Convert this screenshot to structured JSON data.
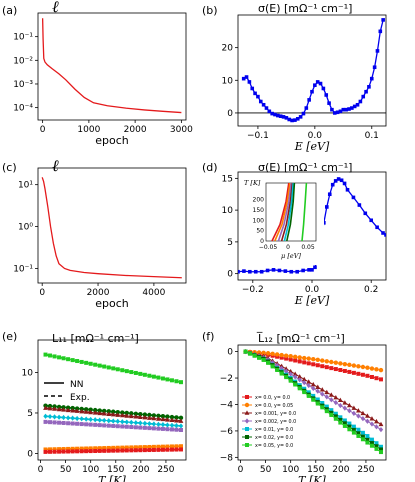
{
  "chart_data": [
    {
      "panel": "(a)",
      "type": "line",
      "title": "ℓ",
      "xlabel": "epoch",
      "ylabel": "",
      "yscale": "log",
      "xlim": [
        -100,
        3100
      ],
      "ylim": [
        3e-05,
        1.0
      ],
      "xticks": [
        0,
        1000,
        2000,
        3000
      ],
      "xtick_labels": [
        "0",
        "1000",
        "2000",
        "3000"
      ],
      "yticks": [
        0.1,
        0.01,
        0.001,
        0.0001
      ],
      "ytick_labels": [
        "10⁻¹",
        "10⁻²",
        "10⁻³",
        "10⁻⁴"
      ],
      "grid": false,
      "series": [
        {
          "color": "#e41a1c",
          "marker": "none",
          "x": [
            0,
            10,
            25,
            50,
            100,
            200,
            350,
            500,
            700,
            900,
            1100,
            1400,
            1800,
            2200,
            2600,
            3000
          ],
          "y": [
            0.6,
            0.08,
            0.012,
            0.0085,
            0.0065,
            0.0045,
            0.0027,
            0.0015,
            0.0006,
            0.00027,
            0.00016,
            0.00012,
            9.5e-05,
            8e-05,
            7e-05,
            6.2e-05
          ]
        }
      ]
    },
    {
      "panel": "(b)",
      "type": "line",
      "title": "σ(E) [mΩ⁻¹ cm⁻¹]",
      "xlabel": "E [eV]",
      "ylabel": "",
      "xlim": [
        -0.135,
        0.125
      ],
      "ylim": [
        -4,
        30
      ],
      "xticks": [
        -0.1,
        0.0,
        0.1
      ],
      "xtick_labels": [
        "−0.1",
        "0.0",
        "0.1"
      ],
      "yticks": [
        0,
        10,
        20
      ],
      "ytick_labels": [
        "0",
        "10",
        "20"
      ],
      "hline": 0,
      "grid": false,
      "series": [
        {
          "color": "#0000ee",
          "marker": "square",
          "x": [
            -0.125,
            -0.12,
            -0.115,
            -0.11,
            -0.105,
            -0.1,
            -0.095,
            -0.09,
            -0.085,
            -0.08,
            -0.075,
            -0.07,
            -0.065,
            -0.06,
            -0.055,
            -0.05,
            -0.045,
            -0.04,
            -0.035,
            -0.03,
            -0.025,
            -0.02,
            -0.015,
            -0.01,
            -0.005,
            0.0,
            0.005,
            0.01,
            0.015,
            0.02,
            0.025,
            0.03,
            0.035,
            0.04,
            0.045,
            0.05,
            0.055,
            0.06,
            0.065,
            0.07,
            0.075,
            0.08,
            0.085,
            0.09,
            0.095,
            0.1,
            0.105,
            0.11,
            0.115,
            0.12
          ],
          "y": [
            10.5,
            11.0,
            9.5,
            7.5,
            6.0,
            5.0,
            3.5,
            2.5,
            1.5,
            0.5,
            -0.2,
            -0.5,
            -0.8,
            -1.0,
            -1.2,
            -1.5,
            -2.0,
            -2.3,
            -2.2,
            -1.8,
            -1.2,
            -0.2,
            1.5,
            4.0,
            6.5,
            8.5,
            9.5,
            9.0,
            7.5,
            5.5,
            3.0,
            1.0,
            0.0,
            0.2,
            0.5,
            1.0,
            1.0,
            1.2,
            1.5,
            2.0,
            2.5,
            3.5,
            5.0,
            6.5,
            8.0,
            10.5,
            14.0,
            19.0,
            25.0,
            28.5
          ]
        }
      ]
    },
    {
      "panel": "(c)",
      "type": "line",
      "title": "ℓ",
      "xlabel": "epoch",
      "ylabel": "",
      "yscale": "log",
      "xlim": [
        -150,
        5150
      ],
      "ylim": [
        0.045,
        25
      ],
      "xticks": [
        0,
        2000,
        4000
      ],
      "xtick_labels": [
        "0",
        "2000",
        "4000"
      ],
      "yticks": [
        10,
        1,
        0.1
      ],
      "ytick_labels": [
        "10¹",
        "10⁰",
        "10⁻¹"
      ],
      "grid": false,
      "series": [
        {
          "color": "#e41a1c",
          "marker": "none",
          "x": [
            0,
            50,
            100,
            200,
            300,
            400,
            500,
            600,
            800,
            1000,
            1500,
            2000,
            3000,
            4000,
            5000
          ],
          "y": [
            15,
            12,
            8,
            3,
            1.0,
            0.4,
            0.2,
            0.13,
            0.1,
            0.09,
            0.08,
            0.075,
            0.068,
            0.064,
            0.06
          ]
        }
      ]
    },
    {
      "panel": "(d)",
      "type": "line",
      "title": "σ(E) [mΩ⁻¹ cm⁻¹]",
      "xlabel": "E [eV]",
      "ylabel": "",
      "xlim": [
        -0.25,
        0.25
      ],
      "ylim": [
        -1,
        16
      ],
      "xticks": [
        -0.2,
        0.0,
        0.2
      ],
      "xtick_labels": [
        "−0.2",
        "0.0",
        "0.2"
      ],
      "yticks": [
        0,
        5,
        10,
        15
      ],
      "ytick_labels": [
        "0",
        "5",
        "10",
        "15"
      ],
      "grid": false,
      "series": [
        {
          "color": "#0000ee",
          "marker": "square",
          "x": [
            -0.25,
            -0.23,
            -0.21,
            -0.19,
            -0.17,
            -0.15,
            -0.13,
            -0.11,
            -0.09,
            -0.07,
            -0.05,
            -0.03,
            -0.01,
            0.0,
            0.01,
            0.02,
            0.03,
            0.04,
            0.05,
            0.06,
            0.07,
            0.08,
            0.09,
            0.1,
            0.11,
            0.12,
            0.14,
            0.16,
            0.18,
            0.2,
            0.22,
            0.24,
            0.25
          ],
          "y": [
            0.3,
            0.4,
            0.3,
            0.3,
            0.3,
            0.5,
            0.6,
            0.5,
            0.4,
            0.3,
            0.3,
            0.5,
            0.6,
            0.6,
            1.0,
            2.5,
            5.0,
            8.0,
            10.5,
            12.5,
            14.0,
            14.6,
            14.9,
            14.7,
            14.2,
            13.2,
            12.0,
            10.8,
            9.5,
            8.4,
            7.3,
            6.4,
            6.1
          ]
        }
      ],
      "inset": {
        "ylabel": "T [K]",
        "xlabel": "μ [eV]",
        "xlim": [
          -0.055,
          0.07
        ],
        "ylim": [
          0,
          280
        ],
        "xticks": [
          -0.05,
          0.0,
          0.05
        ],
        "xtick_labels": [
          "−0.05",
          "0",
          "0.05"
        ],
        "yticks": [
          0,
          50,
          100,
          150,
          200
        ],
        "ytick_labels": [
          "0",
          "50",
          "100",
          "150",
          "200"
        ],
        "series": [
          {
            "color": "#e41a1c",
            "x": [
              -0.04,
              -0.02,
              -0.005,
              0.002
            ],
            "y": [
              0,
              80,
              190,
              280
            ]
          },
          {
            "color": "#ff7f00",
            "x": [
              -0.033,
              -0.015,
              -0.002,
              0.005
            ],
            "y": [
              0,
              80,
              190,
              280
            ]
          },
          {
            "color": "#9467bd",
            "x": [
              -0.024,
              -0.01,
              0.002,
              0.008
            ],
            "y": [
              0,
              80,
              190,
              280
            ]
          },
          {
            "color": "#8b1a1a",
            "x": [
              -0.016,
              -0.004,
              0.006,
              0.011
            ],
            "y": [
              0,
              80,
              190,
              280
            ]
          },
          {
            "color": "#00bcd4",
            "x": [
              -0.009,
              0.001,
              0.009,
              0.013
            ],
            "y": [
              0,
              80,
              190,
              280
            ]
          },
          {
            "color": "#006400",
            "x": [
              -0.003,
              0.006,
              0.013,
              0.016
            ],
            "y": [
              0,
              80,
              190,
              280
            ]
          },
          {
            "color": "#22cc22",
            "x": [
              0.035,
              0.039,
              0.043,
              0.046
            ],
            "y": [
              0,
              80,
              190,
              280
            ]
          }
        ]
      }
    },
    {
      "panel": "(e)",
      "type": "line",
      "title": "L₁₁ [mΩ⁻¹ cm⁻¹]",
      "xlabel": "T [K]",
      "ylabel": "",
      "xlim": [
        -5,
        290
      ],
      "ylim": [
        -0.8,
        14
      ],
      "xticks": [
        0,
        50,
        100,
        150,
        200,
        250
      ],
      "xtick_labels": [
        "0",
        "50",
        "100",
        "150",
        "200",
        "250"
      ],
      "yticks": [
        0,
        5,
        10
      ],
      "ytick_labels": [
        "0",
        "5",
        "10"
      ],
      "legend": {
        "entries": [
          "NN",
          "Exp."
        ],
        "placement": "center-left"
      },
      "grid": false,
      "series": [
        {
          "color": "#22cc22",
          "x": [
            10,
            280
          ],
          "y": [
            12.2,
            8.8
          ]
        },
        {
          "color": "#006400",
          "x": [
            10,
            280
          ],
          "y": [
            5.9,
            4.4
          ]
        },
        {
          "color": "#8b1a1a",
          "x": [
            10,
            280
          ],
          "y": [
            5.6,
            4.0
          ]
        },
        {
          "color": "#00bcd4",
          "x": [
            10,
            280
          ],
          "y": [
            4.6,
            3.4
          ]
        },
        {
          "color": "#9467bd",
          "x": [
            10,
            280
          ],
          "y": [
            3.9,
            2.9
          ]
        },
        {
          "color": "#ff7f00",
          "x": [
            10,
            280
          ],
          "y": [
            0.5,
            0.9
          ]
        },
        {
          "color": "#e41a1c",
          "x": [
            10,
            280
          ],
          "y": [
            0.2,
            0.5
          ]
        }
      ]
    },
    {
      "panel": "(f)",
      "type": "line",
      "title": "L̅₁₂ [mΩ⁻¹ cm⁻¹]",
      "xlabel": "T [K]",
      "ylabel": "",
      "xlim": [
        -5,
        290
      ],
      "ylim": [
        -8.2,
        0.5
      ],
      "xticks": [
        0,
        50,
        100,
        150,
        200,
        250
      ],
      "xtick_labels": [
        "0",
        "50",
        "100",
        "150",
        "200",
        "250"
      ],
      "yticks": [
        0,
        -2,
        -4,
        -6,
        -8
      ],
      "ytick_labels": [
        "0",
        "−2",
        "−4",
        "−6",
        "−8"
      ],
      "legend": {
        "placement": "lower-left"
      },
      "grid": false,
      "series": [
        {
          "name": "x= 0.0, y= 0.0",
          "color": "#e41a1c",
          "x": [
            10,
            50,
            100,
            150,
            200,
            250,
            280
          ],
          "y": [
            0.0,
            -0.2,
            -0.6,
            -1.0,
            -1.4,
            -1.8,
            -2.1
          ]
        },
        {
          "name": "x= 0.0, y= 0.05",
          "color": "#ff7f00",
          "x": [
            10,
            50,
            100,
            150,
            200,
            250,
            280
          ],
          "y": [
            0.0,
            -0.1,
            -0.35,
            -0.6,
            -0.9,
            -1.2,
            -1.4
          ]
        },
        {
          "name": "x= 0.001, y= 0.0",
          "color": "#8b1a1a",
          "x": [
            10,
            50,
            100,
            150,
            200,
            250,
            280
          ],
          "y": [
            0.0,
            -0.4,
            -1.5,
            -2.6,
            -3.7,
            -4.8,
            -5.5
          ]
        },
        {
          "name": "x= 0.002, y= 0.0",
          "color": "#9467bd",
          "x": [
            10,
            50,
            100,
            150,
            200,
            250,
            280
          ],
          "y": [
            0.0,
            -0.5,
            -1.7,
            -2.9,
            -4.1,
            -5.2,
            -5.9
          ]
        },
        {
          "name": "x= 0.01, y= 0.0",
          "color": "#00bcd4",
          "x": [
            10,
            50,
            100,
            150,
            200,
            250,
            280
          ],
          "y": [
            0.0,
            -0.6,
            -2.0,
            -3.5,
            -5.0,
            -6.3,
            -7.2
          ]
        },
        {
          "name": "x= 0.02, y= 0.0",
          "color": "#006400",
          "x": [
            10,
            50,
            100,
            150,
            200,
            250,
            280
          ],
          "y": [
            0.0,
            -0.6,
            -2.1,
            -3.7,
            -5.2,
            -6.6,
            -7.4
          ]
        },
        {
          "name": "x= 0.05, y= 0.0",
          "color": "#22cc22",
          "x": [
            10,
            50,
            100,
            150,
            200,
            250,
            280
          ],
          "y": [
            0.0,
            -0.7,
            -2.2,
            -3.8,
            -5.4,
            -6.8,
            -7.6
          ]
        }
      ]
    }
  ]
}
